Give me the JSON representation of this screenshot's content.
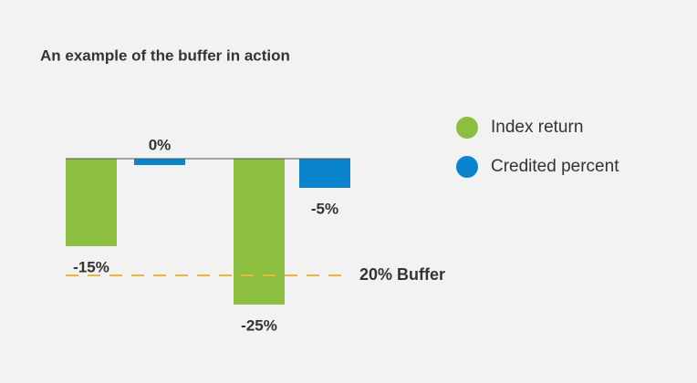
{
  "chart_data": {
    "type": "bar",
    "title": "An example of the buffer in action",
    "categories": [
      null,
      null
    ],
    "series": [
      {
        "name": "Index return",
        "color": "#8cbf3f",
        "values": [
          -15,
          -25
        ],
        "value_labels": [
          "-15%",
          "-25%"
        ]
      },
      {
        "name": "Credited percent",
        "color": "#0a84cc",
        "values": [
          0,
          -5
        ],
        "value_labels": [
          "0%",
          "-5%"
        ]
      }
    ],
    "annotation": {
      "text": "20% Buffer",
      "value": -20,
      "color": "#f5b335"
    }
  }
}
